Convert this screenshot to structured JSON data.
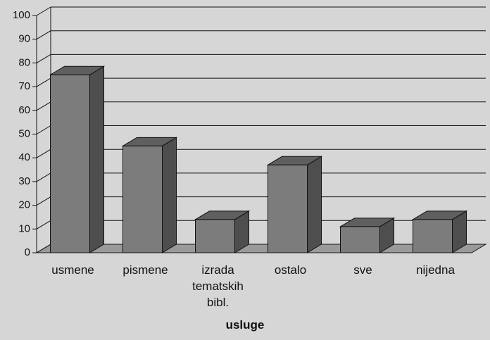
{
  "chart_data": {
    "type": "bar3d",
    "categories": [
      "usmene",
      "pismene",
      "izrada tematskih bibl.",
      "ostalo",
      "sve",
      "nijedna"
    ],
    "values": [
      75,
      45,
      14,
      37,
      11,
      14
    ],
    "x_label": "usluge",
    "ylim": [
      0,
      100
    ],
    "yticks": [
      0,
      10,
      20,
      30,
      40,
      50,
      60,
      70,
      80,
      90,
      100
    ],
    "grid": true,
    "color": "#7c7c7c"
  }
}
